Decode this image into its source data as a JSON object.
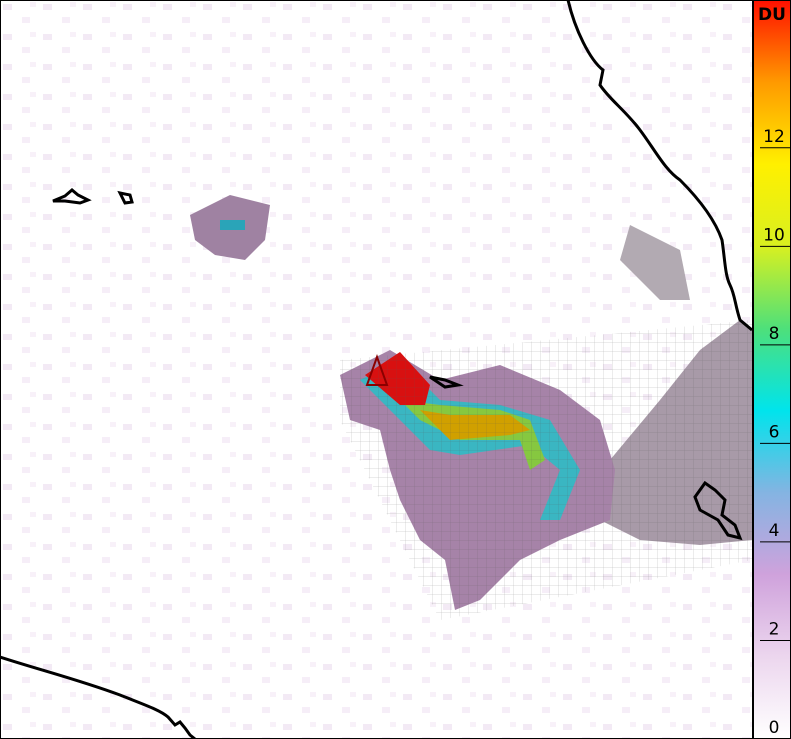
{
  "colorbar": {
    "label": "DU",
    "lim": [
      0,
      15
    ],
    "ticks": [
      0,
      2,
      4,
      6,
      8,
      10,
      12
    ],
    "colors": [
      "#ffffff",
      "#ecd6ee",
      "#cfa2dc",
      "#84b4e2",
      "#00e4ec",
      "#4ee07a",
      "#d8f020",
      "#fff000",
      "#ff9a00",
      "#ff1000"
    ]
  }
}
